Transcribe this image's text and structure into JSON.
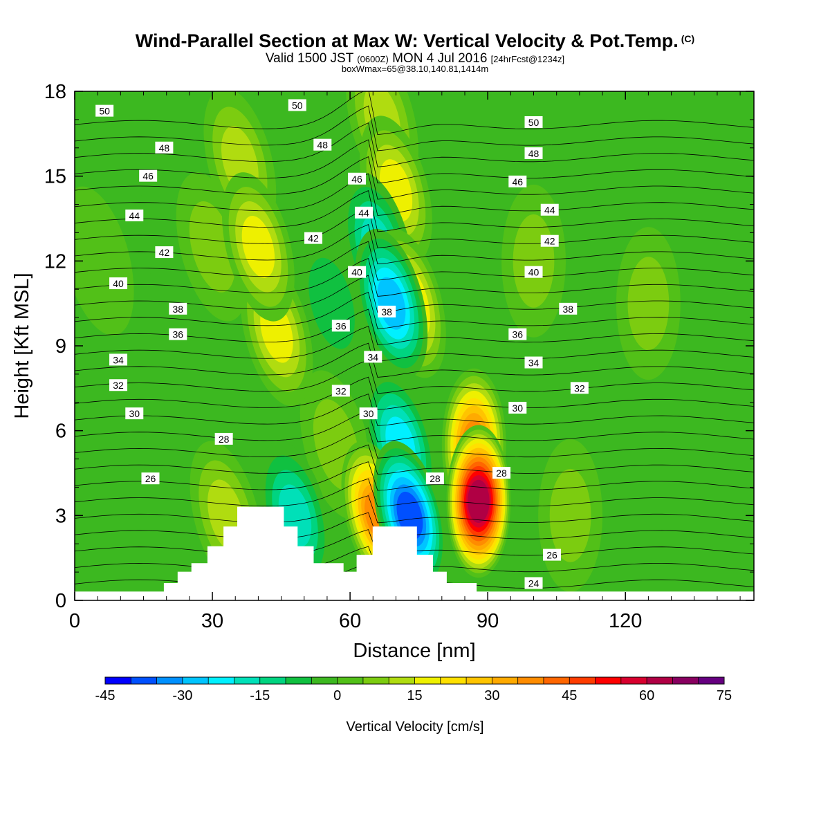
{
  "header": {
    "title": "Wind-Parallel Section at Max W: Vertical Velocity & Pot.Temp.",
    "copyright": "(C)",
    "valid_a": "Valid 1500 JST",
    "valid_utc": "(0600Z)",
    "valid_b": "MON 4 Jul 2016",
    "forecast": "[24hrFcst@1234z]",
    "box_info": "boxWmax=65@38.10,140.81,1414m"
  },
  "chart_data": {
    "type": "heatmap",
    "xlabel": "Distance [nm]",
    "ylabel": "Height [Kft MSL]",
    "xlim": [
      0,
      148
    ],
    "ylim": [
      0,
      18
    ],
    "x_ticks": [
      0,
      30,
      60,
      90,
      120
    ],
    "y_ticks": [
      0,
      3,
      6,
      9,
      12,
      15,
      18
    ],
    "colorbar": {
      "label": "Vertical Velocity [cm/s]",
      "ticks": [
        -45,
        -30,
        -15,
        0,
        15,
        30,
        45,
        60,
        75
      ],
      "levels": [
        -45,
        -40,
        -35,
        -30,
        -25,
        -20,
        -15,
        -10,
        -5,
        0,
        5,
        10,
        15,
        20,
        25,
        30,
        35,
        40,
        45,
        50,
        55,
        60,
        65,
        70,
        75
      ],
      "colors": [
        "#0000ff",
        "#0050ff",
        "#0090ff",
        "#00c4ff",
        "#00f0ff",
        "#00e0b8",
        "#00d480",
        "#10c040",
        "#3cb820",
        "#52c018",
        "#7ccc10",
        "#b0dc10",
        "#eef000",
        "#ffe000",
        "#ffc400",
        "#ffaa00",
        "#ff8c00",
        "#ff6600",
        "#ff3c00",
        "#ff0000",
        "#d8002e",
        "#b00044",
        "#880060",
        "#660080"
      ]
    },
    "velocity_cells": [
      {
        "x": 40,
        "z": 12.5,
        "w": 22
      },
      {
        "x": 44,
        "z": 9.5,
        "w": 18
      },
      {
        "x": 36,
        "z": 15.5,
        "w": 14
      },
      {
        "x": 73,
        "z": 10.5,
        "w": 24
      },
      {
        "x": 70,
        "z": 14.5,
        "w": 18
      },
      {
        "x": 67,
        "z": 17.0,
        "w": 14
      },
      {
        "x": 69,
        "z": 10.5,
        "w": -30
      },
      {
        "x": 66,
        "z": 12.5,
        "w": -20
      },
      {
        "x": 73,
        "z": 3.0,
        "w": -40
      },
      {
        "x": 71,
        "z": 5.5,
        "w": -25
      },
      {
        "x": 88,
        "z": 3.5,
        "w": 65
      },
      {
        "x": 87,
        "z": 5.5,
        "w": 40
      },
      {
        "x": 66,
        "z": 3.0,
        "w": 38
      },
      {
        "x": 33,
        "z": 3.0,
        "w": 15
      },
      {
        "x": 57,
        "z": 5.5,
        "w": 12
      },
      {
        "x": 48,
        "z": 3.0,
        "w": -18
      },
      {
        "x": 56,
        "z": 10.5,
        "w": -12
      },
      {
        "x": 100,
        "z": 12.0,
        "w": 8
      },
      {
        "x": 108,
        "z": 3.0,
        "w": 8
      },
      {
        "x": 125,
        "z": 10.5,
        "w": 8
      },
      {
        "x": 5,
        "z": 12.0,
        "w": 6
      },
      {
        "x": 22,
        "z": 12.5,
        "w": -5
      },
      {
        "x": 30,
        "z": 12.5,
        "w": 9
      }
    ],
    "theta_labels": [
      {
        "value": "50",
        "x": 6.5,
        "z": 17.3
      },
      {
        "value": "48",
        "x": 19.5,
        "z": 16.0
      },
      {
        "value": "46",
        "x": 16,
        "z": 15.0
      },
      {
        "value": "44",
        "x": 13,
        "z": 13.6
      },
      {
        "value": "42",
        "x": 19.5,
        "z": 12.3
      },
      {
        "value": "40",
        "x": 9.5,
        "z": 11.2
      },
      {
        "value": "38",
        "x": 22.5,
        "z": 10.3
      },
      {
        "value": "36",
        "x": 22.5,
        "z": 9.4
      },
      {
        "value": "34",
        "x": 9.5,
        "z": 8.5
      },
      {
        "value": "32",
        "x": 9.5,
        "z": 7.6
      },
      {
        "value": "30",
        "x": 13,
        "z": 6.6
      },
      {
        "value": "28",
        "x": 32.5,
        "z": 5.7
      },
      {
        "value": "26",
        "x": 16.5,
        "z": 4.3
      },
      {
        "value": "50",
        "x": 48.5,
        "z": 17.5
      },
      {
        "value": "48",
        "x": 54,
        "z": 16.1
      },
      {
        "value": "46",
        "x": 61.5,
        "z": 14.9
      },
      {
        "value": "44",
        "x": 63,
        "z": 13.7
      },
      {
        "value": "42",
        "x": 52,
        "z": 12.8
      },
      {
        "value": "40",
        "x": 61.5,
        "z": 11.6
      },
      {
        "value": "38",
        "x": 68,
        "z": 10.2
      },
      {
        "value": "36",
        "x": 58,
        "z": 9.7
      },
      {
        "value": "34",
        "x": 65,
        "z": 8.6
      },
      {
        "value": "32",
        "x": 58,
        "z": 7.4
      },
      {
        "value": "30",
        "x": 64,
        "z": 6.6
      },
      {
        "value": "28",
        "x": 78.5,
        "z": 4.3
      },
      {
        "value": "50",
        "x": 100,
        "z": 16.9
      },
      {
        "value": "48",
        "x": 100,
        "z": 15.8
      },
      {
        "value": "46",
        "x": 96.5,
        "z": 14.8
      },
      {
        "value": "44",
        "x": 103.5,
        "z": 13.8
      },
      {
        "value": "42",
        "x": 103.5,
        "z": 12.7
      },
      {
        "value": "40",
        "x": 100,
        "z": 11.6
      },
      {
        "value": "38",
        "x": 107.5,
        "z": 10.3
      },
      {
        "value": "36",
        "x": 96.5,
        "z": 9.4
      },
      {
        "value": "34",
        "x": 100,
        "z": 8.4
      },
      {
        "value": "32",
        "x": 110,
        "z": 7.5
      },
      {
        "value": "30",
        "x": 96.5,
        "z": 6.8
      },
      {
        "value": "28",
        "x": 93,
        "z": 4.5
      },
      {
        "value": "26",
        "x": 104,
        "z": 1.6
      },
      {
        "value": "24",
        "x": 100,
        "z": 0.6
      }
    ],
    "terrain": [
      [
        0,
        0.3
      ],
      [
        19.5,
        0.3
      ],
      [
        19.5,
        0.6
      ],
      [
        22.5,
        0.6
      ],
      [
        22.5,
        1.0
      ],
      [
        25.5,
        1.0
      ],
      [
        25.5,
        1.3
      ],
      [
        29,
        1.3
      ],
      [
        29,
        1.9
      ],
      [
        32.5,
        1.9
      ],
      [
        32.5,
        2.6
      ],
      [
        35.5,
        2.6
      ],
      [
        35.5,
        3.3
      ],
      [
        45.5,
        3.3
      ],
      [
        45.5,
        2.6
      ],
      [
        48.5,
        2.6
      ],
      [
        48.5,
        1.9
      ],
      [
        52,
        1.9
      ],
      [
        52,
        1.3
      ],
      [
        58.5,
        1.3
      ],
      [
        58.5,
        1.0
      ],
      [
        61.5,
        1.0
      ],
      [
        61.5,
        1.6
      ],
      [
        65,
        1.6
      ],
      [
        65,
        2.6
      ],
      [
        74.5,
        2.6
      ],
      [
        74.5,
        1.6
      ],
      [
        78,
        1.6
      ],
      [
        78,
        1.0
      ],
      [
        81,
        1.0
      ],
      [
        81,
        0.6
      ],
      [
        87.5,
        0.6
      ],
      [
        87.5,
        0.3
      ],
      [
        148,
        0.3
      ]
    ]
  }
}
